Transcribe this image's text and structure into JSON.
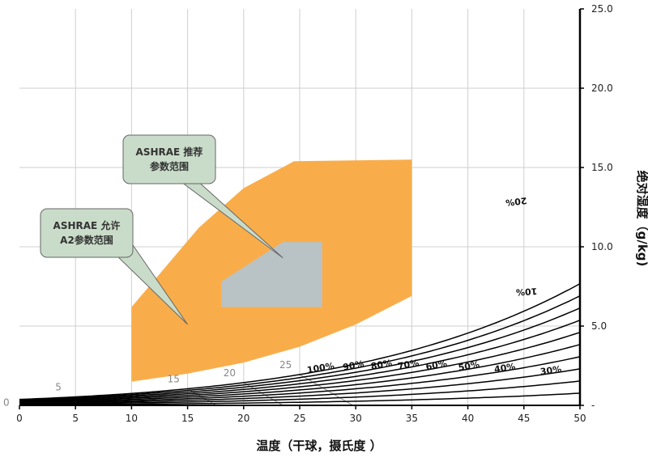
{
  "chart_data": {
    "type": "psychrometric",
    "xlabel": "温度（干球，摄氏度 ）",
    "ylabel": "绝对湿度（g/kg)",
    "xlim": [
      0,
      50
    ],
    "ylim": [
      0,
      25
    ],
    "x_ticks": [
      "0",
      "5",
      "10",
      "15",
      "20",
      "25",
      "30",
      "35",
      "40",
      "45",
      "50"
    ],
    "y_ticks": [
      "-",
      "5.0",
      "10.0",
      "15.0",
      "20.0",
      "25.0"
    ],
    "rh_curves": [
      {
        "label": "10%",
        "rh": 0.1
      },
      {
        "label": "20%",
        "rh": 0.2
      },
      {
        "label": "30%",
        "rh": 0.3
      },
      {
        "label": "40%",
        "rh": 0.4
      },
      {
        "label": "50%",
        "rh": 0.5
      },
      {
        "label": "60%",
        "rh": 0.6
      },
      {
        "label": "70%",
        "rh": 0.7
      },
      {
        "label": "80%",
        "rh": 0.8
      },
      {
        "label": "90%",
        "rh": 0.9
      },
      {
        "label": "100%",
        "rh": 1.0
      }
    ],
    "wet_bulb_lines": [
      {
        "label": "0",
        "t": 0
      },
      {
        "label": "5",
        "t": 5
      },
      {
        "label": "15",
        "t": 15
      },
      {
        "label": "20",
        "t": 20
      },
      {
        "label": "25",
        "t": 25
      }
    ],
    "regions": [
      {
        "name": "ASHRAE 允许 A2参数范围",
        "color": "#f9ad4a",
        "points": [
          [
            10,
            1.5
          ],
          [
            10,
            6.2
          ],
          [
            16,
            11.2
          ],
          [
            20,
            13.7
          ],
          [
            24.5,
            15.4
          ],
          [
            35,
            15.5
          ],
          [
            35,
            6.9
          ],
          [
            30,
            5.1
          ],
          [
            25,
            3.7
          ],
          [
            20,
            2.7
          ],
          [
            15,
            2.0
          ],
          [
            10,
            1.5
          ]
        ]
      },
      {
        "name": "ASHRAE 推荐 参数范围",
        "color": "#b9c2c4",
        "points": [
          [
            18,
            6.2
          ],
          [
            27,
            6.2
          ],
          [
            27,
            10.3
          ],
          [
            23.5,
            10.3
          ],
          [
            18,
            7.8
          ],
          [
            18,
            6.2
          ]
        ]
      }
    ],
    "callouts": [
      {
        "lines": [
          "ASHRAE 推荐",
          "参数范围"
        ],
        "target": [
          23.5,
          9.3
        ]
      },
      {
        "lines": [
          "ASHRAE 允许",
          "A2参数范围"
        ],
        "target": [
          15,
          5.1
        ]
      }
    ],
    "grid": true
  }
}
